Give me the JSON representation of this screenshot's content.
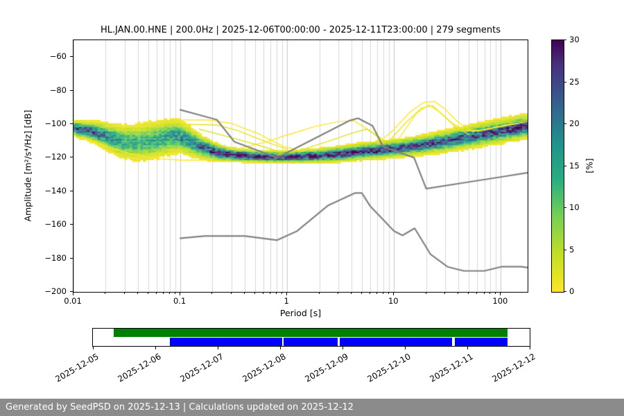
{
  "figure": {
    "title": "HL.JAN.00.HNE | 200.0Hz | 2025-12-06T00:00:00 - 2025-12-11T23:00:00 | 279 segments"
  },
  "chart_data": {
    "type": "heatmap",
    "title": "HL.JAN.00.HNE | 200.0Hz | 2025-12-06T00:00:00 - 2025-12-11T23:00:00 | 279 segments",
    "xlabel": "Period [s]",
    "ylabel": "Amplitude [m²/s⁴/Hz] [dB]",
    "xscale": "log",
    "xlim": [
      0.01,
      178
    ],
    "ylim": [
      -200,
      -50
    ],
    "xticks": {
      "values": [
        0.01,
        0.1,
        1,
        10,
        100
      ],
      "labels": [
        "0.01",
        "0.1",
        "1",
        "10",
        "100"
      ]
    },
    "yticks": {
      "values": [
        -60,
        -80,
        -100,
        -120,
        -140,
        -160,
        -180,
        -200
      ],
      "labels": [
        "−60",
        "−80",
        "−100",
        "−120",
        "−140",
        "−160",
        "−180",
        "−200"
      ]
    },
    "grid_on": true,
    "grid_color": "#d7d7d7",
    "colorbar": {
      "label": "[%]",
      "min": 0,
      "max": 30,
      "ticks": [
        0,
        5,
        10,
        15,
        20,
        25,
        30
      ],
      "stops": [
        [
          0.0,
          "#fde725"
        ],
        [
          0.15,
          "#c2df23"
        ],
        [
          0.3,
          "#75d054"
        ],
        [
          0.45,
          "#27ad81"
        ],
        [
          0.6,
          "#21908c"
        ],
        [
          0.75,
          "#355f8d"
        ],
        [
          0.9,
          "#46327e"
        ],
        [
          1.0,
          "#440154"
        ]
      ]
    },
    "ppsd_band": [
      [
        0.01,
        -102.5,
        2.0,
        26
      ],
      [
        0.014,
        -104.0,
        2.5,
        23
      ],
      [
        0.02,
        -107.0,
        3.4,
        19
      ],
      [
        0.028,
        -110.5,
        4.2,
        15
      ],
      [
        0.04,
        -111.0,
        4.8,
        13
      ],
      [
        0.055,
        -110.0,
        5.0,
        13
      ],
      [
        0.075,
        -108.0,
        4.6,
        15
      ],
      [
        0.095,
        -107.0,
        4.3,
        17
      ],
      [
        0.12,
        -110.0,
        3.8,
        18
      ],
      [
        0.16,
        -114.0,
        2.9,
        22
      ],
      [
        0.22,
        -116.8,
        2.2,
        27
      ],
      [
        0.3,
        -118.3,
        1.7,
        30
      ],
      [
        0.5,
        -119.2,
        1.5,
        30
      ],
      [
        0.8,
        -119.6,
        1.5,
        30
      ],
      [
        1.3,
        -119.4,
        1.6,
        30
      ],
      [
        2.0,
        -118.8,
        1.8,
        28
      ],
      [
        3.2,
        -117.8,
        2.0,
        27
      ],
      [
        5.0,
        -116.4,
        2.1,
        27
      ],
      [
        8.0,
        -115.2,
        2.2,
        26
      ],
      [
        12.0,
        -114.2,
        2.3,
        25
      ],
      [
        20.0,
        -112.2,
        2.5,
        24
      ],
      [
        32.0,
        -110.0,
        2.7,
        24
      ],
      [
        50.0,
        -107.6,
        2.9,
        24
      ],
      [
        80.0,
        -105.2,
        3.0,
        25
      ],
      [
        120.0,
        -103.2,
        3.0,
        26
      ],
      [
        178.0,
        -101.2,
        3.0,
        27
      ]
    ],
    "outlier_traces": [
      {
        "color": "#fde725",
        "points": [
          [
            0.1,
            -97.5
          ],
          [
            0.18,
            -97.5
          ],
          [
            0.3,
            -99.5
          ],
          [
            0.55,
            -106
          ],
          [
            0.9,
            -113
          ],
          [
            1.4,
            -116.5
          ]
        ]
      },
      {
        "color": "#e5e419",
        "points": [
          [
            0.1,
            -100
          ],
          [
            0.22,
            -100.5
          ],
          [
            0.35,
            -104
          ],
          [
            0.6,
            -110
          ],
          [
            1.0,
            -115
          ]
        ]
      },
      {
        "color": "#fde725",
        "points": [
          [
            0.35,
            -114.5
          ],
          [
            0.6,
            -111
          ],
          [
            1.0,
            -106.5
          ],
          [
            1.8,
            -101.5
          ],
          [
            3.0,
            -98.5
          ],
          [
            4.2,
            -98.0
          ],
          [
            6.0,
            -104
          ],
          [
            8.0,
            -111
          ]
        ]
      },
      {
        "color": "#dde318",
        "points": [
          [
            0.8,
            -118.5
          ],
          [
            1.5,
            -114.5
          ],
          [
            2.5,
            -110
          ],
          [
            4.0,
            -105.5
          ],
          [
            5.5,
            -103
          ],
          [
            7.0,
            -107
          ],
          [
            9.0,
            -112
          ]
        ]
      },
      {
        "color": "#fde725",
        "points": [
          [
            7,
            -112
          ],
          [
            10,
            -103
          ],
          [
            14,
            -93
          ],
          [
            19,
            -87
          ],
          [
            24,
            -86.5
          ],
          [
            30,
            -91
          ],
          [
            40,
            -99
          ],
          [
            55,
            -104.5
          ],
          [
            80,
            -102.5
          ],
          [
            120,
            -100.5
          ],
          [
            178,
            -98.5
          ]
        ]
      },
      {
        "color": "#eae51a",
        "points": [
          [
            9,
            -110
          ],
          [
            13,
            -99
          ],
          [
            18,
            -90.5
          ],
          [
            23,
            -89
          ],
          [
            29,
            -95
          ],
          [
            38,
            -102
          ],
          [
            50,
            -106
          ]
        ]
      },
      {
        "color": "#fde725",
        "points": [
          [
            11,
            -109
          ],
          [
            16,
            -94
          ],
          [
            21,
            -88.5
          ],
          [
            27,
            -93
          ],
          [
            36,
            -100
          ],
          [
            48,
            -104
          ],
          [
            70,
            -103.5
          ],
          [
            110,
            -100.5
          ],
          [
            160,
            -99
          ]
        ]
      },
      {
        "color": "#c8e020",
        "points": [
          [
            2,
            -115.5
          ],
          [
            5,
            -112
          ],
          [
            10,
            -110
          ],
          [
            20,
            -107.5
          ],
          [
            40,
            -104
          ],
          [
            80,
            -100.5
          ],
          [
            178,
            -97.5
          ]
        ]
      },
      {
        "color": "#dde318",
        "points": [
          [
            0.15,
            -103
          ],
          [
            0.3,
            -108
          ],
          [
            0.5,
            -112
          ],
          [
            0.8,
            -116
          ]
        ]
      },
      {
        "color": "#fde725",
        "points": [
          [
            0.012,
            -108
          ],
          [
            0.02,
            -113
          ],
          [
            0.035,
            -118
          ],
          [
            0.06,
            -120.5
          ],
          [
            0.1,
            -121.5
          ],
          [
            0.2,
            -121.5
          ]
        ]
      }
    ],
    "noise_models": {
      "color": "#808080",
      "nhnm": [
        [
          0.1,
          -91.5
        ],
        [
          0.15,
          -94.5
        ],
        [
          0.22,
          -97.4
        ],
        [
          0.32,
          -110.5
        ],
        [
          0.5,
          -115.1
        ],
        [
          0.8,
          -120.0
        ],
        [
          1.0,
          -116.9
        ],
        [
          2.0,
          -107.1
        ],
        [
          3.8,
          -98.0
        ],
        [
          4.6,
          -96.5
        ],
        [
          6.3,
          -101.0
        ],
        [
          7.9,
          -113.5
        ],
        [
          10.0,
          -115.8
        ],
        [
          15.4,
          -120.0
        ],
        [
          20.0,
          -138.5
        ],
        [
          50.0,
          -134.5
        ],
        [
          100,
          -131.5
        ],
        [
          178,
          -129.0
        ]
      ],
      "nlnm": [
        [
          0.1,
          -168.0
        ],
        [
          0.17,
          -166.7
        ],
        [
          0.4,
          -166.7
        ],
        [
          0.8,
          -169.2
        ],
        [
          1.24,
          -163.7
        ],
        [
          2.4,
          -148.6
        ],
        [
          4.3,
          -141.1
        ],
        [
          5.0,
          -141.1
        ],
        [
          6.0,
          -149.0
        ],
        [
          10.0,
          -163.7
        ],
        [
          12.0,
          -166.3
        ],
        [
          15.6,
          -162.1
        ],
        [
          21.9,
          -177.5
        ],
        [
          31.6,
          -185.0
        ],
        [
          45.0,
          -187.5
        ],
        [
          70.0,
          -187.5
        ],
        [
          101,
          -185.0
        ],
        [
          154,
          -185.0
        ],
        [
          178,
          -185.5
        ]
      ]
    }
  },
  "timeline": {
    "dates": [
      "2025-12-05",
      "2025-12-06",
      "2025-12-07",
      "2025-12-08",
      "2025-12-09",
      "2025-12-10",
      "2025-12-11",
      "2025-12-12"
    ],
    "green_color": "#008000",
    "blue_color": "#0000ff",
    "green_segments": [
      [
        0.047,
        0.949
      ]
    ],
    "blue_segments": [
      [
        0.176,
        0.433
      ],
      [
        0.437,
        0.561
      ],
      [
        0.565,
        0.823
      ],
      [
        0.828,
        0.949
      ]
    ]
  },
  "status_bar": {
    "text": "Generated by SeedPSD on 2025-12-13 | Calculations updated on 2025-12-12",
    "bg": "#8b8b8b",
    "fg": "#ffffff"
  }
}
